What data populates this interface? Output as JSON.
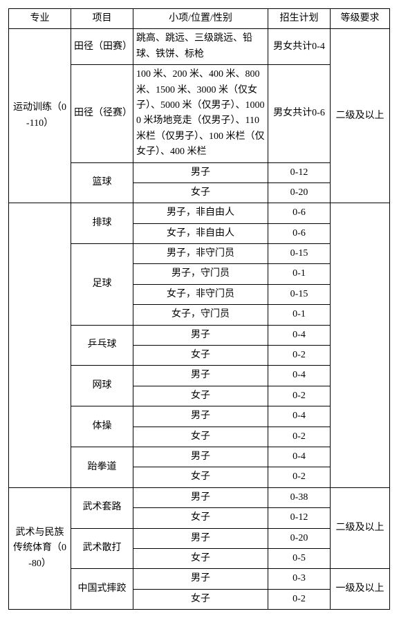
{
  "headers": {
    "c1": "专业",
    "c2": "项目",
    "c3": "小项/位置/性别",
    "c4": "招生计划",
    "c5": "等级要求"
  },
  "major1": "运动训练（0-110）",
  "major2": "武术与民族传统体育（0-80）",
  "tj_tian": {
    "name": "田径（田赛）",
    "detail": "跳高、跳远、三级跳远、铅球、铁饼、标枪",
    "plan": "男女共计0-4"
  },
  "tj_jing": {
    "name": "田径（径赛）",
    "detail": "100 米、200 米、400 米、800 米、1500 米、3000 米（仅女子）、5000 米（仅男子）、10000 米场地竞走（仅男子）、110 米栏（仅男子）、100 米栏（仅女子）、400 米栏",
    "plan": "男女共计0-6"
  },
  "bb": {
    "name": "篮球",
    "m": "男子",
    "mp": "0-12",
    "w": "女子",
    "wp": "0-20"
  },
  "vb": {
    "name": "排球",
    "m": "男子，非自由人",
    "mp": "0-6",
    "w": "女子，非自由人",
    "wp": "0-6"
  },
  "fb": {
    "name": "足球",
    "r1": "男子，非守门员",
    "p1": "0-15",
    "r2": "男子，守门员",
    "p2": "0-1",
    "r3": "女子，非守门员",
    "p3": "0-15",
    "r4": "女子，守门员",
    "p4": "0-1"
  },
  "tt": {
    "name": "乒乓球",
    "m": "男子",
    "mp": "0-4",
    "w": "女子",
    "wp": "0-2"
  },
  "tn": {
    "name": "网球",
    "m": "男子",
    "mp": "0-4",
    "w": "女子",
    "wp": "0-2"
  },
  "gy": {
    "name": "体操",
    "m": "男子",
    "mp": "0-4",
    "w": "女子",
    "wp": "0-2"
  },
  "tk": {
    "name": "跆拳道",
    "m": "男子",
    "mp": "0-4",
    "w": "女子",
    "wp": "0-2"
  },
  "ws": {
    "name": "武术套路",
    "m": "男子",
    "mp": "0-38",
    "w": "女子",
    "wp": "0-12"
  },
  "sd": {
    "name": "武术散打",
    "m": "男子",
    "mp": "0-20",
    "w": "女子",
    "wp": "0-5"
  },
  "sj": {
    "name": "中国式摔跤",
    "m": "男子",
    "mp": "0-3",
    "w": "女子",
    "wp": "0-2"
  },
  "level2": "二级及以上",
  "level1": "一级及以上"
}
